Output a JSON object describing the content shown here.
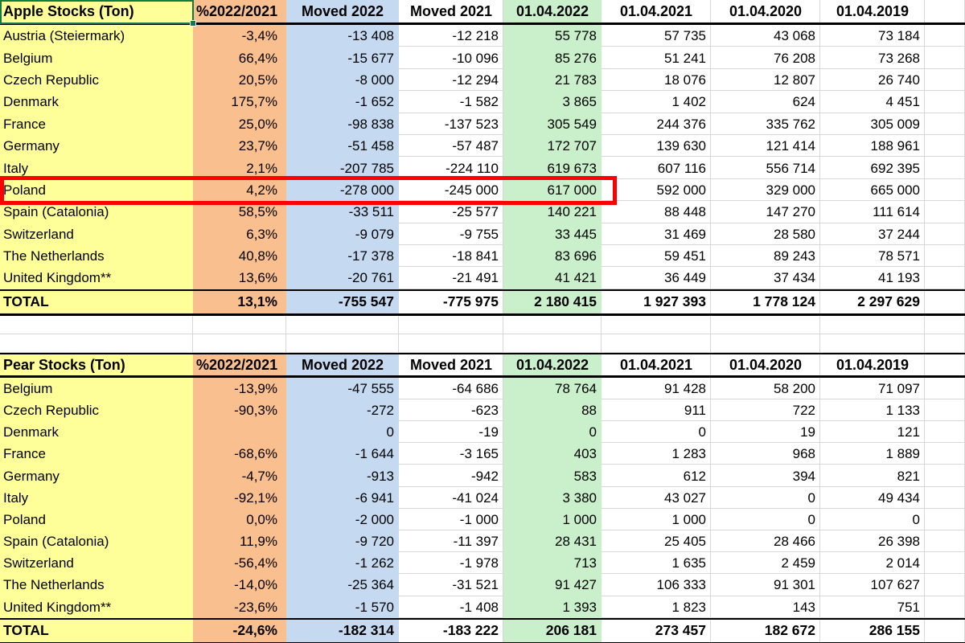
{
  "colors": {
    "yellow": "#FFFF99",
    "orange": "#FABF8F",
    "blue": "#C5D9F1",
    "green": "#C9F0CB",
    "grid": "#D6D6D6",
    "selection": "#107C41",
    "highlight": "#FF0000"
  },
  "column_headers": {
    "pct": "%2022/2021",
    "moved2022": "Moved 2022",
    "moved2021": "Moved 2021",
    "d2022": "01.04.2022",
    "d2021": "01.04.2021",
    "d2020": "01.04.2020",
    "d2019": "01.04.2019"
  },
  "apple_table": {
    "title": "Apple Stocks (Ton)",
    "highlighted_row": "Poland",
    "rows": [
      {
        "country": "Austria (Steiermark)",
        "pct": "-3,4%",
        "moved2022": "-13 408",
        "moved2021": "-12 218",
        "s2022": "55 778",
        "s2021": "57 735",
        "s2020": "43 068",
        "s2019": "73 184"
      },
      {
        "country": "Belgium",
        "pct": "66,4%",
        "moved2022": "-15 677",
        "moved2021": "-10 096",
        "s2022": "85 276",
        "s2021": "51 241",
        "s2020": "76 208",
        "s2019": "73 268"
      },
      {
        "country": "Czech Republic",
        "pct": "20,5%",
        "moved2022": "-8 000",
        "moved2021": "-12 294",
        "s2022": "21 783",
        "s2021": "18 076",
        "s2020": "12 807",
        "s2019": "26 740"
      },
      {
        "country": "Denmark",
        "pct": "175,7%",
        "moved2022": "-1 652",
        "moved2021": "-1 582",
        "s2022": "3 865",
        "s2021": "1 402",
        "s2020": "624",
        "s2019": "4 451"
      },
      {
        "country": "France",
        "pct": "25,0%",
        "moved2022": "-98 838",
        "moved2021": "-137 523",
        "s2022": "305 549",
        "s2021": "244 376",
        "s2020": "335 762",
        "s2019": "305 009"
      },
      {
        "country": "Germany",
        "pct": "23,7%",
        "moved2022": "-51 458",
        "moved2021": "-57 487",
        "s2022": "172 707",
        "s2021": "139 630",
        "s2020": "121 414",
        "s2019": "188 961"
      },
      {
        "country": "Italy",
        "pct": "2,1%",
        "moved2022": "-207 785",
        "moved2021": "-224 110",
        "s2022": "619 673",
        "s2021": "607 116",
        "s2020": "556 714",
        "s2019": "692 395"
      },
      {
        "country": "Poland",
        "pct": "4,2%",
        "moved2022": "-278 000",
        "moved2021": "-245 000",
        "s2022": "617 000",
        "s2021": "592 000",
        "s2020": "329 000",
        "s2019": "665 000"
      },
      {
        "country": "Spain (Catalonia)",
        "pct": "58,5%",
        "moved2022": "-33 511",
        "moved2021": "-25 577",
        "s2022": "140 221",
        "s2021": "88 448",
        "s2020": "147 270",
        "s2019": "111 614"
      },
      {
        "country": "Switzerland",
        "pct": "6,3%",
        "moved2022": "-9 079",
        "moved2021": "-9 755",
        "s2022": "33 445",
        "s2021": "31 469",
        "s2020": "28 580",
        "s2019": "37 244"
      },
      {
        "country": "The Netherlands",
        "pct": "40,8%",
        "moved2022": "-17 378",
        "moved2021": "-18 841",
        "s2022": "83 696",
        "s2021": "59 451",
        "s2020": "89 243",
        "s2019": "78 571"
      },
      {
        "country": "United Kingdom**",
        "pct": "13,6%",
        "moved2022": "-20 761",
        "moved2021": "-21 491",
        "s2022": "41 421",
        "s2021": "36 449",
        "s2020": "37 434",
        "s2019": "41 193"
      }
    ],
    "total": {
      "label": "TOTAL",
      "pct": "13,1%",
      "moved2022": "-755 547",
      "moved2021": "-775 975",
      "s2022": "2 180 415",
      "s2021": "1 927 393",
      "s2020": "1 778 124",
      "s2019": "2 297 629"
    }
  },
  "pear_table": {
    "title": "Pear Stocks (Ton)",
    "rows": [
      {
        "country": "Belgium",
        "pct": "-13,9%",
        "moved2022": "-47 555",
        "moved2021": "-64 686",
        "s2022": "78 764",
        "s2021": "91 428",
        "s2020": "58 200",
        "s2019": "71 097"
      },
      {
        "country": "Czech Republic",
        "pct": "-90,3%",
        "moved2022": "-272",
        "moved2021": "-623",
        "s2022": "88",
        "s2021": "911",
        "s2020": "722",
        "s2019": "1 133"
      },
      {
        "country": "Denmark",
        "pct": "",
        "moved2022": "0",
        "moved2021": "-19",
        "s2022": "0",
        "s2021": "0",
        "s2020": "19",
        "s2019": "121"
      },
      {
        "country": "France",
        "pct": "-68,6%",
        "moved2022": "-1 644",
        "moved2021": "-3 165",
        "s2022": "403",
        "s2021": "1 283",
        "s2020": "968",
        "s2019": "1 889"
      },
      {
        "country": "Germany",
        "pct": "-4,7%",
        "moved2022": "-913",
        "moved2021": "-942",
        "s2022": "583",
        "s2021": "612",
        "s2020": "394",
        "s2019": "821"
      },
      {
        "country": "Italy",
        "pct": "-92,1%",
        "moved2022": "-6 941",
        "moved2021": "-41 024",
        "s2022": "3 380",
        "s2021": "43 027",
        "s2020": "0",
        "s2019": "49 434"
      },
      {
        "country": "Poland",
        "pct": "0,0%",
        "moved2022": "-2 000",
        "moved2021": "-1 000",
        "s2022": "1 000",
        "s2021": "1 000",
        "s2020": "0",
        "s2019": "0"
      },
      {
        "country": "Spain (Catalonia)",
        "pct": "11,9%",
        "moved2022": "-9 720",
        "moved2021": "-11 397",
        "s2022": "28 431",
        "s2021": "25 405",
        "s2020": "28 466",
        "s2019": "26 398"
      },
      {
        "country": "Switzerland",
        "pct": "-56,4%",
        "moved2022": "-1 262",
        "moved2021": "-1 978",
        "s2022": "713",
        "s2021": "1 635",
        "s2020": "2 459",
        "s2019": "2 014"
      },
      {
        "country": "The Netherlands",
        "pct": "-14,0%",
        "moved2022": "-25 364",
        "moved2021": "-31 521",
        "s2022": "91 427",
        "s2021": "106 333",
        "s2020": "91 301",
        "s2019": "107 627"
      },
      {
        "country": "United Kingdom**",
        "pct": "-23,6%",
        "moved2022": "-1 570",
        "moved2021": "-1 408",
        "s2022": "1 393",
        "s2021": "1 823",
        "s2020": "143",
        "s2019": "751"
      }
    ],
    "total": {
      "label": "TOTAL",
      "pct": "-24,6%",
      "moved2022": "-182 314",
      "moved2021": "-183 222",
      "s2022": "206 181",
      "s2021": "273 457",
      "s2020": "182 672",
      "s2019": "286 155"
    }
  }
}
